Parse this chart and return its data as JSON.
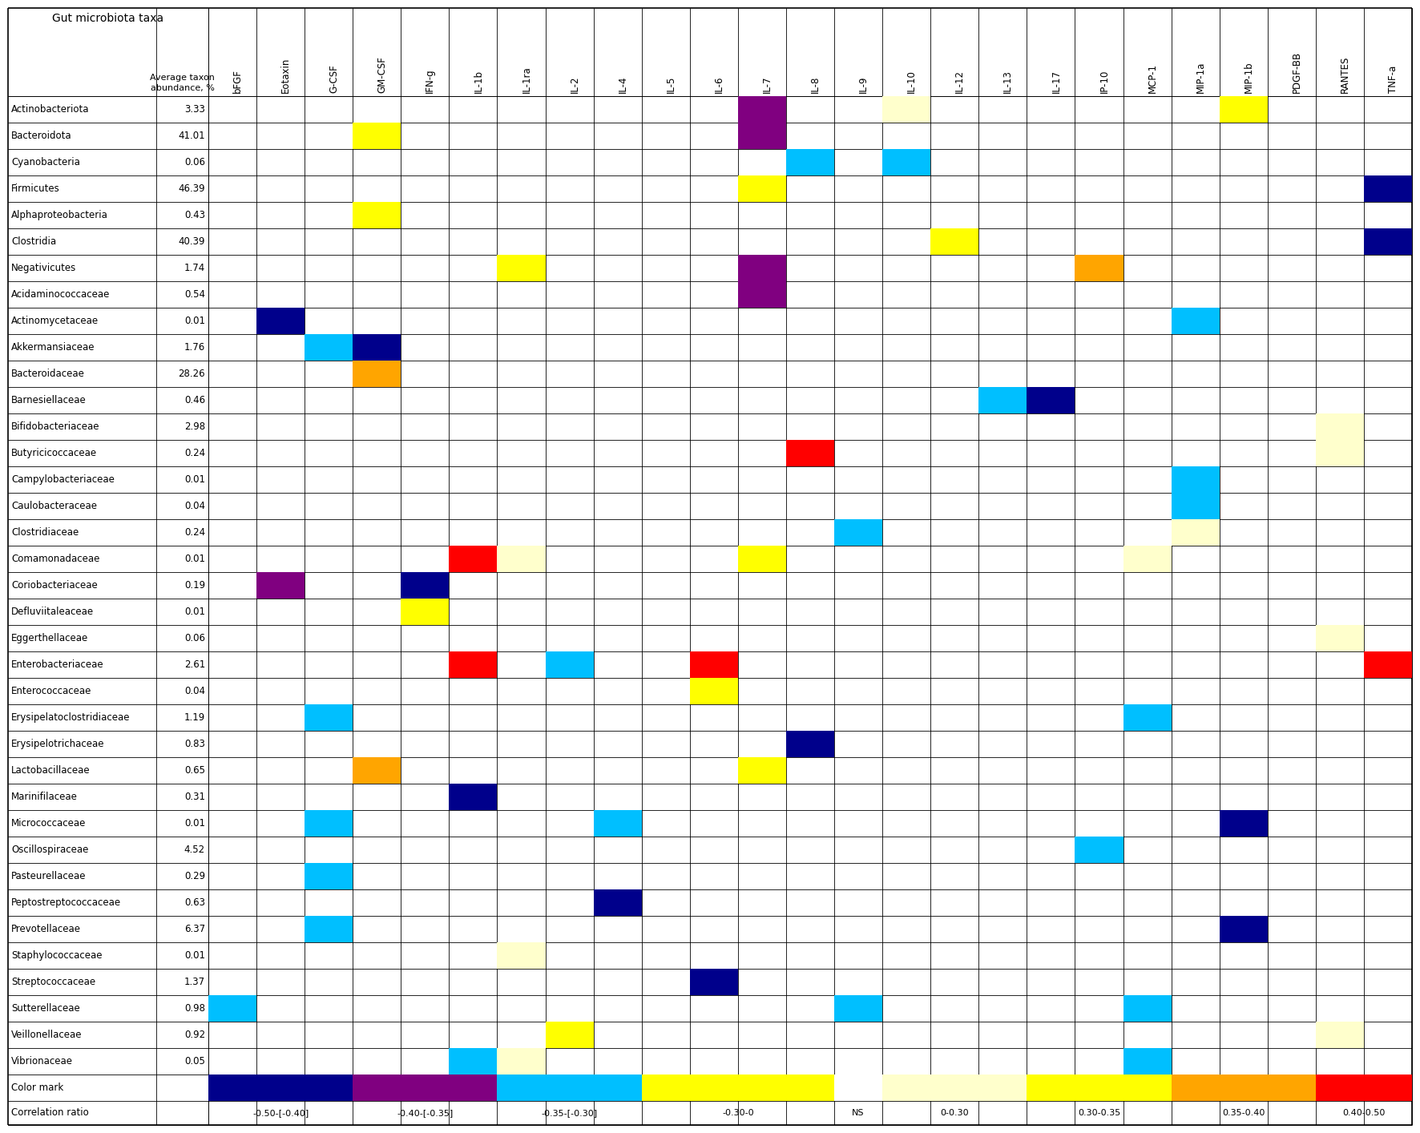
{
  "cytokines": [
    "bFGF",
    "Eotaxin",
    "G-CSF",
    "GM-CSF",
    "IFN-g",
    "IL-1b",
    "IL-1ra",
    "IL-2",
    "IL-4",
    "IL-5",
    "IL-6",
    "IL-7",
    "IL-8",
    "IL-9",
    "IL-10",
    "IL-12",
    "IL-13",
    "IL-17",
    "IP-10",
    "MCP-1",
    "MIP-1a",
    "MIP-1b",
    "PDGF-BB",
    "RANTES",
    "TNF-a"
  ],
  "taxa": [
    "Actinobacteriota",
    "Bacteroidota",
    "Cyanobacteria",
    "Firmicutes",
    "Alphaproteobacteria",
    "Clostridia",
    "Negativicutes",
    "Acidaminococcaceae",
    "Actinomycetaceae",
    "Akkermansiaceae",
    "Bacteroidaceae",
    "Barnesiellaceae",
    "Bifidobacteriaceae",
    "Butyricicoccaceae",
    "Campylobacteriaceae",
    "Caulobacteraceae",
    "Clostridiaceae",
    "Comamonadaceae",
    "Coriobacteriaceae",
    "Defluviitaleaceae",
    "Eggerthellaceae",
    "Enterobacteriaceae",
    "Enterococcaceae",
    "Erysipelatoclostridiaceae",
    "Erysipelotrichaceae",
    "Lactobacillaceae",
    "Marinifilaceae",
    "Micrococcaceae",
    "Oscillospiraceae",
    "Pasteurellaceae",
    "Peptostreptococcaceae",
    "Prevotellaceae",
    "Staphylococcaceae",
    "Streptococcaceae",
    "Sutterellaceae",
    "Veillonellaceae",
    "Vibrionaceae"
  ],
  "abundances": [
    "3.33",
    "41.01",
    "0.06",
    "46.39",
    "0.43",
    "40.39",
    "1.74",
    "0.54",
    "0.01",
    "1.76",
    "28.26",
    "0.46",
    "2.98",
    "0.24",
    "0.01",
    "0.04",
    "0.24",
    "0.01",
    "0.19",
    "0.01",
    "0.06",
    "2.61",
    "0.04",
    "1.19",
    "0.83",
    "0.65",
    "0.31",
    "0.01",
    "4.52",
    "0.29",
    "0.63",
    "6.37",
    "0.01",
    "1.37",
    "0.98",
    "0.92",
    "0.05"
  ],
  "color_values": {
    "navy": "#00008B",
    "purple": "#800080",
    "cyan": "#00BFFF",
    "yellow": "#FFFF00",
    "white": "#FFFFFF",
    "ltyellow": "#FFFFCC",
    "orange": "#FFA500",
    "red": "#FF0000",
    "dkblue": "#003F8F"
  },
  "cell_data": {
    "Actinobacteriota": {
      "IL-7": "purple",
      "IL-10": "ltyellow",
      "MIP-1b": "yellow"
    },
    "Bacteroidota": {
      "GM-CSF": "yellow",
      "IL-7": "purple"
    },
    "Cyanobacteria": {
      "IL-8": "cyan",
      "IL-10": "cyan"
    },
    "Firmicutes": {
      "IL-7": "yellow",
      "TNF-a": "navy"
    },
    "Alphaproteobacteria": {
      "GM-CSF": "yellow"
    },
    "Clostridia": {
      "IL-12": "yellow",
      "TNF-a": "navy"
    },
    "Negativicutes": {
      "IL-1ra": "yellow",
      "IL-7": "purple",
      "IP-10": "orange"
    },
    "Acidaminococcaceae": {
      "IL-7": "purple"
    },
    "Actinomycetaceae": {
      "Eotaxin": "navy",
      "MIP-1a": "cyan"
    },
    "Akkermansiaceae": {
      "G-CSF": "cyan",
      "GM-CSF": "navy"
    },
    "Bacteroidaceae": {
      "GM-CSF": "orange"
    },
    "Barnesiellaceae": {
      "IL-13": "cyan",
      "IL-17": "navy"
    },
    "Bifidobacteriaceae": {
      "RANTES": "ltyellow"
    },
    "Butyricicoccaceae": {
      "IL-8": "red",
      "RANTES": "ltyellow"
    },
    "Campylobacteriaceae": {
      "MIP-1a": "cyan"
    },
    "Caulobacteraceae": {
      "MIP-1a": "cyan"
    },
    "Clostridiaceae": {
      "IL-9": "cyan",
      "MIP-1a": "ltyellow"
    },
    "Comamonadaceae": {
      "IL-1b": "red",
      "IL-1ra": "ltyellow",
      "IL-7": "yellow",
      "MCP-1": "ltyellow"
    },
    "Coriobacteriaceae": {
      "Eotaxin": "purple",
      "IFN-g": "navy"
    },
    "Defluviitaleaceae": {
      "IFN-g": "yellow"
    },
    "Eggerthellaceae": {
      "RANTES": "ltyellow"
    },
    "Enterobacteriaceae": {
      "IL-1b": "red",
      "IL-2": "cyan",
      "IL-6": "red",
      "TNF-a": "red"
    },
    "Enterococcaceae": {
      "IL-6": "yellow"
    },
    "Erysipelatoclostridiaceae": {
      "G-CSF": "cyan",
      "MCP-1": "cyan"
    },
    "Erysipelotrichaceae": {
      "IL-8": "navy"
    },
    "Lactobacillaceae": {
      "GM-CSF": "orange",
      "IL-7": "yellow"
    },
    "Marinifilaceae": {
      "IL-1b": "navy"
    },
    "Micrococcaceae": {
      "G-CSF": "cyan",
      "IL-4": "cyan",
      "MIP-1b": "navy"
    },
    "Oscillospiraceae": {
      "IP-10": "cyan"
    },
    "Pasteurellaceae": {
      "G-CSF": "cyan"
    },
    "Peptostreptococcaceae": {
      "IL-4": "navy"
    },
    "Prevotellaceae": {
      "G-CSF": "cyan",
      "MIP-1b": "navy"
    },
    "Staphylococcaceae": {
      "IL-1ra": "ltyellow"
    },
    "Streptococcaceae": {
      "IL-6": "navy"
    },
    "Sutterellaceae": {
      "bFGF": "cyan",
      "IL-9": "cyan",
      "MCP-1": "cyan"
    },
    "Veillonellaceae": {
      "IL-2": "yellow",
      "RANTES": "ltyellow"
    },
    "Vibrionaceae": {
      "IL-1b": "cyan",
      "IL-1ra": "ltyellow",
      "MCP-1": "cyan"
    }
  },
  "color_mark_groups": [
    {
      "color": "#00008B",
      "start": 0,
      "end": 2
    },
    {
      "color": "#800080",
      "start": 3,
      "end": 5
    },
    {
      "color": "#00BFFF",
      "start": 6,
      "end": 8
    },
    {
      "color": "#FFFF00",
      "start": 9,
      "end": 12
    },
    {
      "color": "#FFFFFF",
      "start": 13,
      "end": 13
    },
    {
      "color": "#FFFFCC",
      "start": 14,
      "end": 16
    },
    {
      "color": "#FFFF00",
      "start": 17,
      "end": 19
    },
    {
      "color": "#FFA500",
      "start": 20,
      "end": 22
    },
    {
      "color": "#FF0000",
      "start": 23,
      "end": 24
    }
  ],
  "corr_labels": [
    {
      "start": 0,
      "end": 2,
      "label": "-0.50-[-0.40]"
    },
    {
      "start": 3,
      "end": 5,
      "label": "-0.40-[-0.35]"
    },
    {
      "start": 6,
      "end": 8,
      "label": "-0.35-[-0.30]"
    },
    {
      "start": 9,
      "end": 12,
      "label": "-0.30-0"
    },
    {
      "start": 13,
      "end": 13,
      "label": "NS"
    },
    {
      "start": 14,
      "end": 16,
      "label": "0-0.30"
    },
    {
      "start": 17,
      "end": 19,
      "label": "0.30-0.35"
    },
    {
      "start": 20,
      "end": 22,
      "label": "0.35-0.40"
    },
    {
      "start": 23,
      "end": 24,
      "label": "0.40-0.50"
    }
  ]
}
